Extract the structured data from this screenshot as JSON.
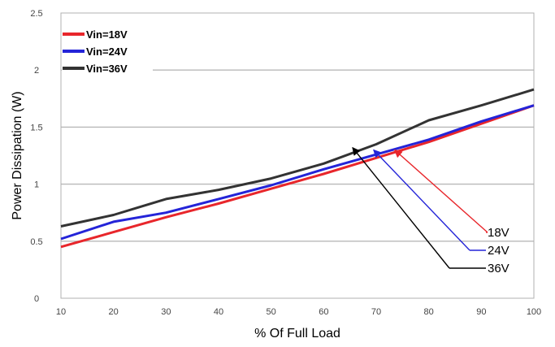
{
  "chart_data": {
    "type": "line",
    "title": "",
    "xlabel": "% Of Full Load",
    "ylabel": "Power Dissipation (W)",
    "xlim": [
      10,
      100
    ],
    "ylim": [
      0,
      2.5
    ],
    "x_ticks": [
      10,
      20,
      30,
      40,
      50,
      60,
      70,
      80,
      90,
      100
    ],
    "y_ticks": [
      0,
      0.5,
      1,
      1.5,
      2,
      2.5
    ],
    "y_tick_labels": [
      "0",
      "0.5",
      "1",
      "1.5",
      "2",
      "2.5"
    ],
    "grid": "horizontal",
    "legend_position": "top-left",
    "x": [
      10,
      20,
      30,
      40,
      50,
      60,
      70,
      80,
      90,
      100
    ],
    "series": [
      {
        "name": "Vin=18V",
        "color": "#e8262b",
        "values": [
          0.45,
          0.58,
          0.71,
          0.83,
          0.96,
          1.09,
          1.23,
          1.37,
          1.53,
          1.69
        ]
      },
      {
        "name": "Vin=24V",
        "color": "#2424d8",
        "values": [
          0.52,
          0.67,
          0.75,
          0.87,
          0.99,
          1.13,
          1.26,
          1.39,
          1.55,
          1.69
        ]
      },
      {
        "name": "Vin=36V",
        "color": "#333333",
        "values": [
          0.63,
          0.73,
          0.87,
          0.95,
          1.05,
          1.18,
          1.35,
          1.56,
          1.69,
          1.83
        ]
      }
    ],
    "annotations": [
      {
        "label": "18V",
        "color": "#e8262b",
        "target_x": 73.5,
        "target_y": 1.3
      },
      {
        "label": "24V",
        "color": "#2424d8",
        "target_x": 69.5,
        "target_y": 1.3
      },
      {
        "label": "36V",
        "color": "#000000",
        "target_x": 65.5,
        "target_y": 1.32
      }
    ]
  }
}
